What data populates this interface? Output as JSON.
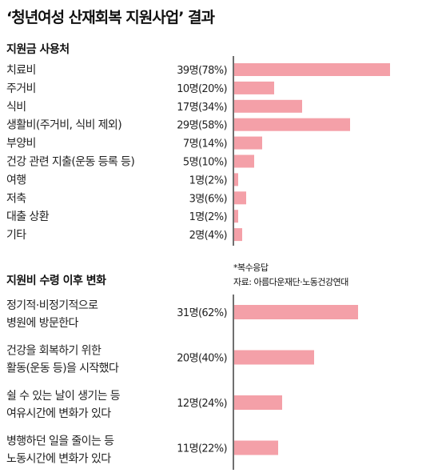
{
  "title": "‘청년여성 산재회복 지원사업’ 결과",
  "section1": {
    "heading": "지원금 사용처"
  },
  "section2": {
    "heading": "지원비 수령 이후 변화"
  },
  "notes": {
    "multiple": "*복수응답",
    "source": "자료: 아름다운재단·노동건강연대"
  },
  "colors": {
    "bar": "#f4a0a8",
    "axis": "#222222"
  },
  "chart_data": [
    {
      "type": "bar",
      "orientation": "horizontal",
      "title": "지원금 사용처",
      "categories": [
        "치료비",
        "주거비",
        "식비",
        "생활비(주거비, 식비 제외)",
        "부양비",
        "건강 관련 지출(운동 등록 등)",
        "여행",
        "저축",
        "대출 상환",
        "기타"
      ],
      "value_labels": [
        "39명(78%)",
        "10명(20%)",
        "17명(34%)",
        "29명(58%)",
        "7명(14%)",
        "5명(10%)",
        "1명(2%)",
        "3명(6%)",
        "1명(2%)",
        "2명(4%)"
      ],
      "values": [
        39,
        10,
        17,
        29,
        7,
        5,
        1,
        3,
        1,
        2
      ],
      "percent": [
        78,
        20,
        34,
        58,
        14,
        10,
        2,
        6,
        2,
        4
      ],
      "xlim": [
        0,
        100
      ]
    },
    {
      "type": "bar",
      "orientation": "horizontal",
      "title": "지원비 수령 이후 변화",
      "categories": [
        [
          "정기적·비정기적으로",
          "병원에 방문한다"
        ],
        [
          "건강을 회복하기 위한",
          "활동(운동 등)을 시작했다"
        ],
        [
          "쉴 수 있는 날이 생기는 등",
          "여유시간에 변화가 있다"
        ],
        [
          "병행하던 일을 줄이는 등",
          "노동시간에 변화가 있다"
        ]
      ],
      "value_labels": [
        "31명(62%)",
        "20명(40%)",
        "12명(24%)",
        "11명(22%)"
      ],
      "values": [
        31,
        20,
        12,
        11
      ],
      "percent": [
        62,
        40,
        24,
        22
      ],
      "xlim": [
        0,
        100
      ]
    }
  ]
}
